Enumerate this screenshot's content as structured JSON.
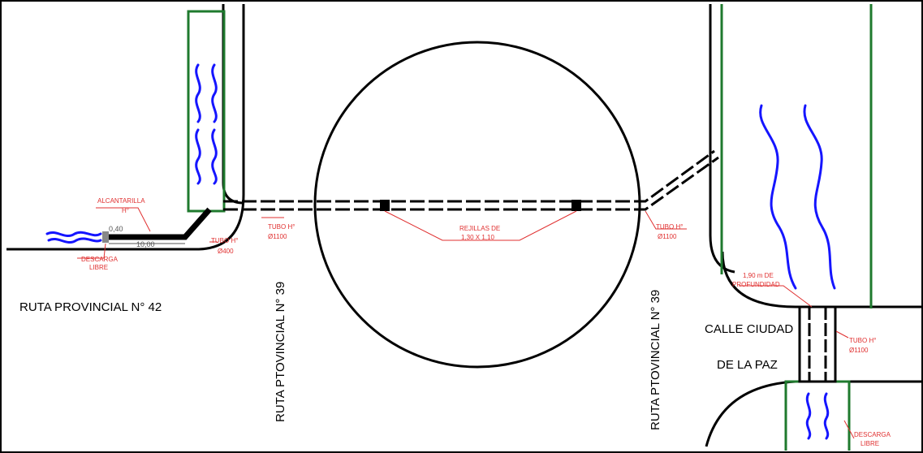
{
  "labels": {
    "ruta_42": "RUTA PROVINCIAL N° 42",
    "ruta_39_left": "RUTA PTOVINCIAL N° 39",
    "ruta_39_right": "RUTA PTOVINCIAL N° 39",
    "calle_line1": "CALLE CIUDAD",
    "calle_line2": "DE LA PAZ"
  },
  "annotations": {
    "alcantarilla_1": "ALCANTARILLA",
    "alcantarilla_2": "H°",
    "descarga_left_1": "DESCARGA",
    "descarga_left_2": "LIBRE",
    "dim_040": "0,40",
    "dim_1000": "10,00",
    "tubo400_1": "TUBO H°",
    "tubo400_2": "Ø400",
    "tubo1100_a_1": "TUBO H°",
    "tubo1100_a_2": "Ø1100",
    "rejillas_1": "REJILLAS DE",
    "rejillas_2": "1,30 X 1,10",
    "tubo1100_b_1": "TUBO H°",
    "tubo1100_b_2": "Ø1100",
    "prof_1": "1,90 m DE",
    "prof_2": "PROFUNDIDAD",
    "tubo1100_c_1": "TUBO H°",
    "tubo1100_c_2": "Ø1100",
    "descarga_right_1": "DESCARGA",
    "descarga_right_2": "LIBRE"
  },
  "colors": {
    "road": "#000000",
    "channel": "#1f7a2e",
    "water": "#1515ff",
    "annotation": "#e03030"
  }
}
